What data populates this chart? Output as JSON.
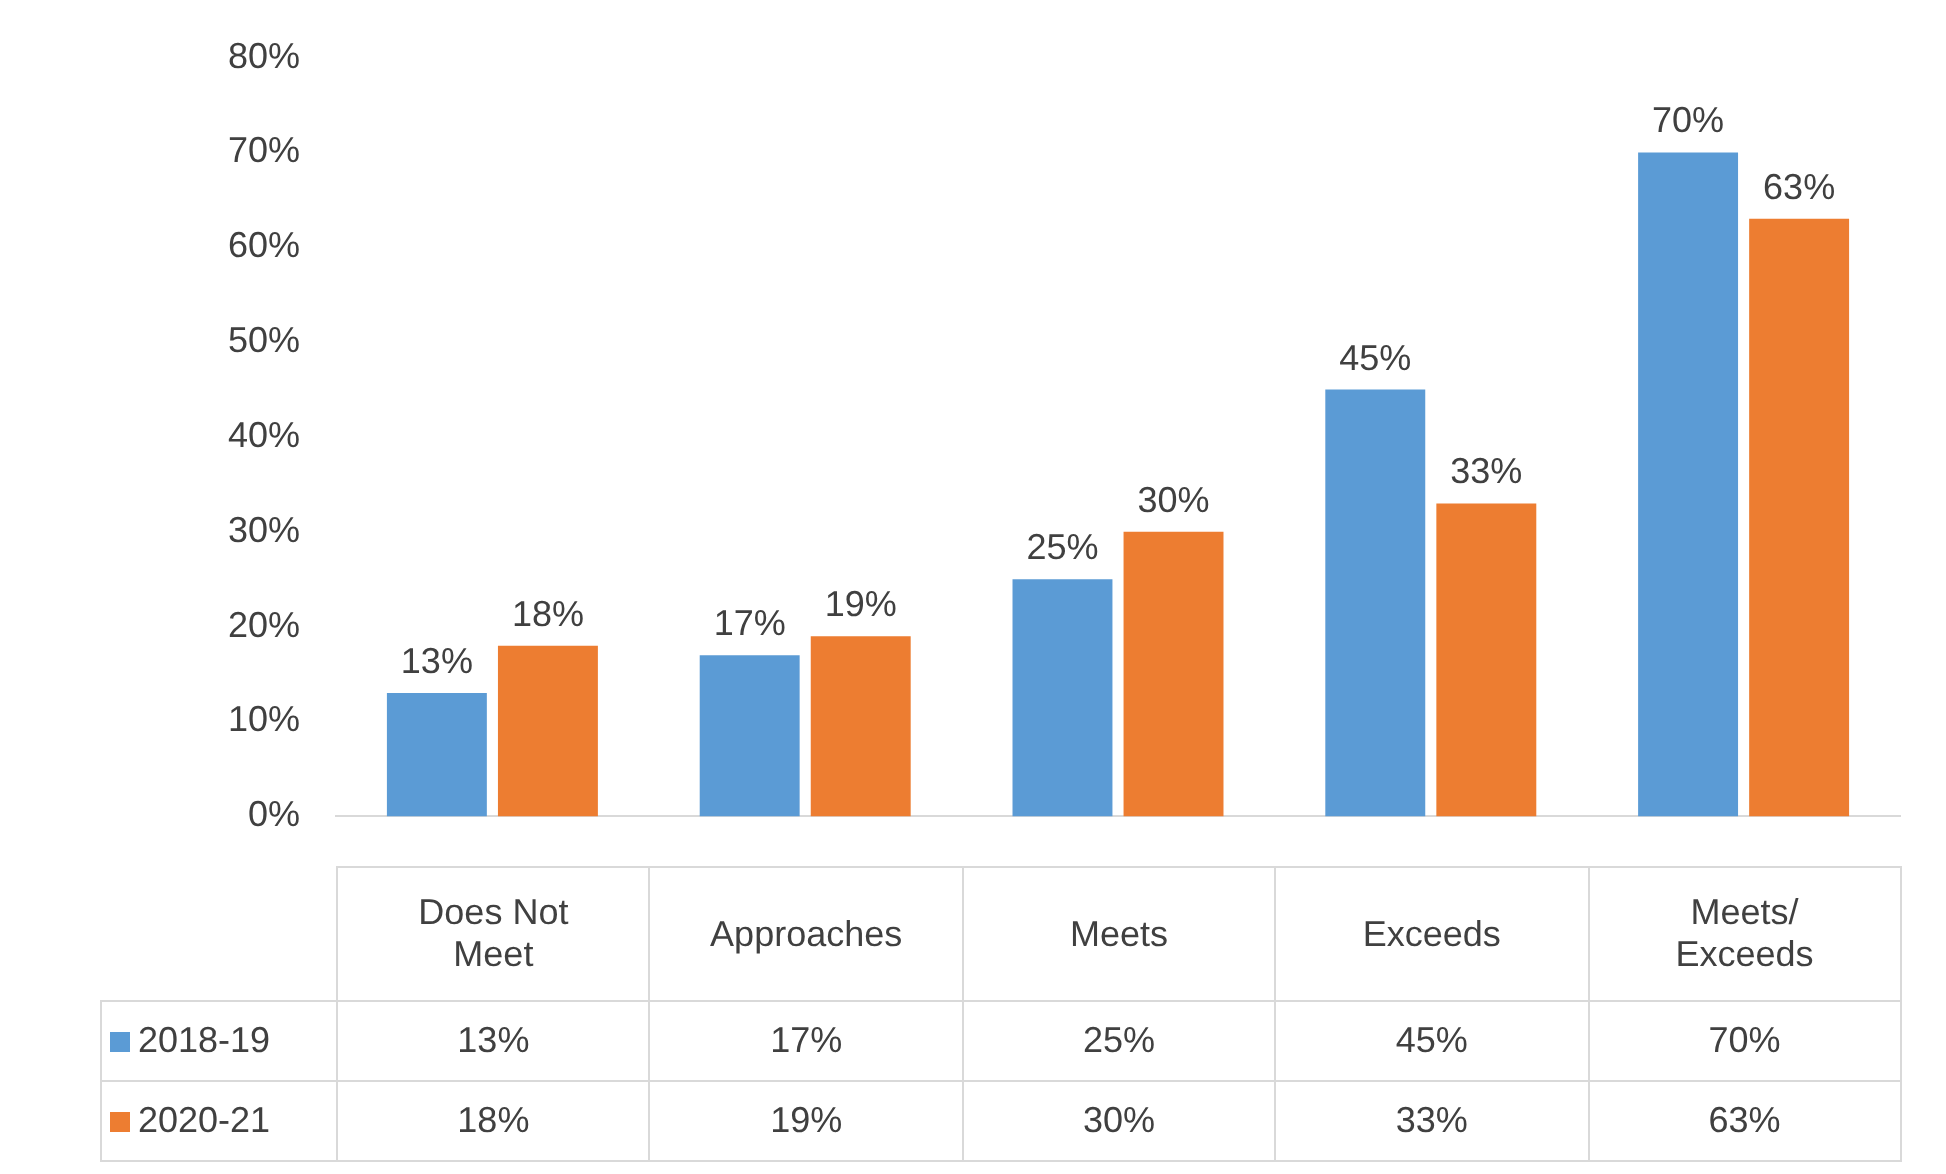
{
  "chart_data": {
    "type": "bar",
    "categories": [
      "Does Not Meet",
      "Approaches",
      "Meets",
      "Exceeds",
      "Meets/ Exceeds"
    ],
    "series": [
      {
        "name": "2018-19",
        "color": "#5b9bd5",
        "values": [
          13,
          17,
          25,
          45,
          70
        ],
        "value_labels": [
          "13%",
          "17%",
          "25%",
          "45%",
          "70%"
        ]
      },
      {
        "name": "2020-21",
        "color": "#ed7d31",
        "values": [
          18,
          19,
          30,
          33,
          63
        ],
        "value_labels": [
          "18%",
          "19%",
          "30%",
          "33%",
          "63%"
        ]
      }
    ],
    "ylim": [
      0,
      80
    ],
    "yticks": [
      {
        "value": 0,
        "label": "0%"
      },
      {
        "value": 10,
        "label": "10%"
      },
      {
        "value": 20,
        "label": "20%"
      },
      {
        "value": 30,
        "label": "30%"
      },
      {
        "value": 40,
        "label": "40%"
      },
      {
        "value": 50,
        "label": "50%"
      },
      {
        "value": 60,
        "label": "60%"
      },
      {
        "value": 70,
        "label": "70%"
      },
      {
        "value": 80,
        "label": "80%"
      }
    ],
    "legend": "bottom"
  }
}
